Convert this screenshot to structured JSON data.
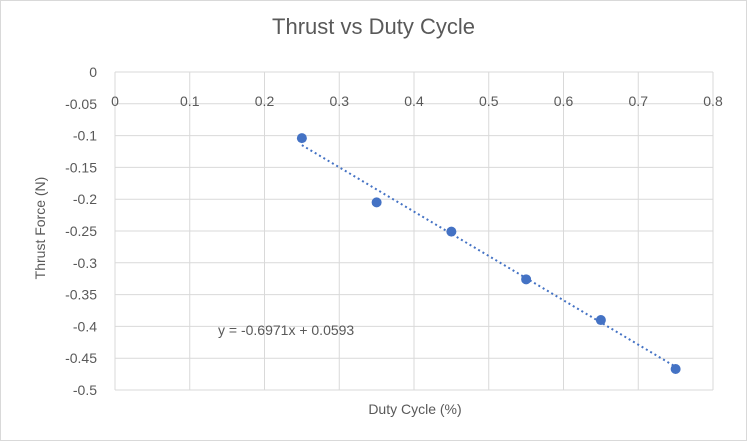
{
  "chart_data": {
    "type": "scatter",
    "title": "Thrust vs Duty Cycle",
    "xlabel": "Duty Cycle (%)",
    "ylabel": "Thrust Force (N)",
    "xlim": [
      0,
      0.8
    ],
    "ylim": [
      -0.5,
      0
    ],
    "x_ticks": [
      0,
      0.1,
      0.2,
      0.3,
      0.4,
      0.5,
      0.6,
      0.7,
      0.8
    ],
    "x_tick_labels": [
      "0",
      "0.1",
      "0.2",
      "0.3",
      "0.4",
      "0.5",
      "0.6",
      "0.7",
      "0.8"
    ],
    "x_tick_position": "top",
    "y_ticks": [
      0,
      -0.05,
      -0.1,
      -0.15,
      -0.2,
      -0.25,
      -0.3,
      -0.35,
      -0.4,
      -0.45,
      -0.5
    ],
    "y_tick_labels": [
      "0",
      "-0.05",
      "-0.1",
      "-0.15",
      "-0.2",
      "-0.25",
      "-0.3",
      "-0.35",
      "-0.4",
      "-0.45",
      "-0.5"
    ],
    "grid": true,
    "legend": "none",
    "series": [
      {
        "x": [
          0.25,
          0.35,
          0.45,
          0.55,
          0.65,
          0.75
        ],
        "y": [
          -0.104,
          -0.205,
          -0.251,
          -0.326,
          -0.39,
          -0.467
        ],
        "color": "#4472c4"
      }
    ],
    "trendline": {
      "type": "linear",
      "slope": -0.6971,
      "intercept": 0.0593,
      "x_range": [
        0.25,
        0.75
      ],
      "style": "dotted",
      "color": "#4472c4",
      "equation_label": "y = -0.6971x + 0.0593"
    }
  }
}
